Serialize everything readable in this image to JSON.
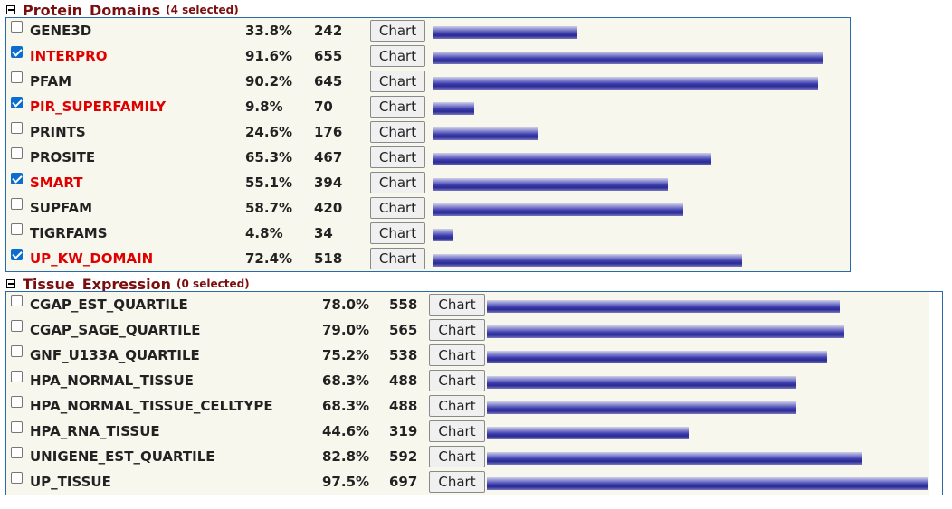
{
  "chart_button_label": "Chart",
  "colors": {
    "section_title": "#7b0f0f",
    "selected_name": "#e00000",
    "bar": "#3c3cb0",
    "panel_border": "#2b6aa8"
  },
  "sections": [
    {
      "title": "Protein_Domains",
      "count_label": "(4 selected)",
      "rows": [
        {
          "name": "GENE3D",
          "percent": "33.8%",
          "count": "242",
          "checked": false,
          "fraction": 0.338
        },
        {
          "name": "INTERPRO",
          "percent": "91.6%",
          "count": "655",
          "checked": true,
          "fraction": 0.916
        },
        {
          "name": "PFAM",
          "percent": "90.2%",
          "count": "645",
          "checked": false,
          "fraction": 0.902
        },
        {
          "name": "PIR_SUPERFAMILY",
          "percent": "9.8%",
          "count": "70",
          "checked": true,
          "fraction": 0.098
        },
        {
          "name": "PRINTS",
          "percent": "24.6%",
          "count": "176",
          "checked": false,
          "fraction": 0.246
        },
        {
          "name": "PROSITE",
          "percent": "65.3%",
          "count": "467",
          "checked": false,
          "fraction": 0.653
        },
        {
          "name": "SMART",
          "percent": "55.1%",
          "count": "394",
          "checked": true,
          "fraction": 0.551
        },
        {
          "name": "SUPFAM",
          "percent": "58.7%",
          "count": "420",
          "checked": false,
          "fraction": 0.587
        },
        {
          "name": "TIGRFAMS",
          "percent": "4.8%",
          "count": "34",
          "checked": false,
          "fraction": 0.048
        },
        {
          "name": "UP_KW_DOMAIN",
          "percent": "72.4%",
          "count": "518",
          "checked": true,
          "fraction": 0.724
        }
      ]
    },
    {
      "title": "Tissue_Expression",
      "count_label": "(0 selected)",
      "rows": [
        {
          "name": "CGAP_EST_QUARTILE",
          "percent": "78.0%",
          "count": "558",
          "checked": false,
          "fraction": 0.78
        },
        {
          "name": "CGAP_SAGE_QUARTILE",
          "percent": "79.0%",
          "count": "565",
          "checked": false,
          "fraction": 0.79
        },
        {
          "name": "GNF_U133A_QUARTILE",
          "percent": "75.2%",
          "count": "538",
          "checked": false,
          "fraction": 0.752
        },
        {
          "name": "HPA_NORMAL_TISSUE",
          "percent": "68.3%",
          "count": "488",
          "checked": false,
          "fraction": 0.683
        },
        {
          "name": "HPA_NORMAL_TISSUE_CELLTYPE",
          "percent": "68.3%",
          "count": "488",
          "checked": false,
          "fraction": 0.683
        },
        {
          "name": "HPA_RNA_TISSUE",
          "percent": "44.6%",
          "count": "319",
          "checked": false,
          "fraction": 0.446
        },
        {
          "name": "UNIGENE_EST_QUARTILE",
          "percent": "82.8%",
          "count": "592",
          "checked": false,
          "fraction": 0.828
        },
        {
          "name": "UP_TISSUE",
          "percent": "97.5%",
          "count": "697",
          "checked": false,
          "fraction": 0.975
        }
      ]
    }
  ]
}
